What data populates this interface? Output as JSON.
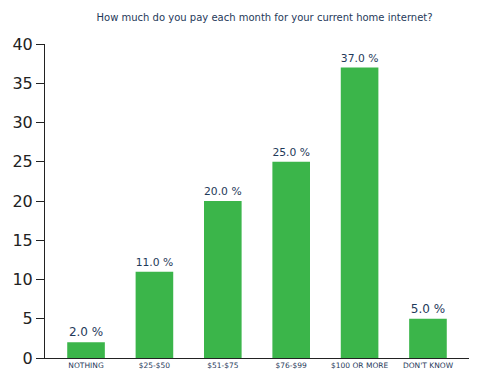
{
  "chart_data": {
    "type": "bar",
    "title": "How much do you pay each month for your current home internet?",
    "categories": [
      "NOTHING",
      "$25-$50",
      "$51-$75",
      "$76-$99",
      "$100 OR MORE",
      "DON'T KNOW"
    ],
    "values": [
      2,
      11,
      20,
      25,
      37,
      5
    ],
    "value_labels": [
      "2.0 %",
      "11.0 %",
      "20.0 %",
      "25.0 %",
      "37.0 %",
      "5.0 %"
    ],
    "data_labels": true,
    "color": "#3bb54a",
    "ylim": [
      0,
      40
    ],
    "yticks": [
      0,
      5,
      10,
      15,
      20,
      25,
      30,
      35,
      40
    ],
    "grid": false
  }
}
